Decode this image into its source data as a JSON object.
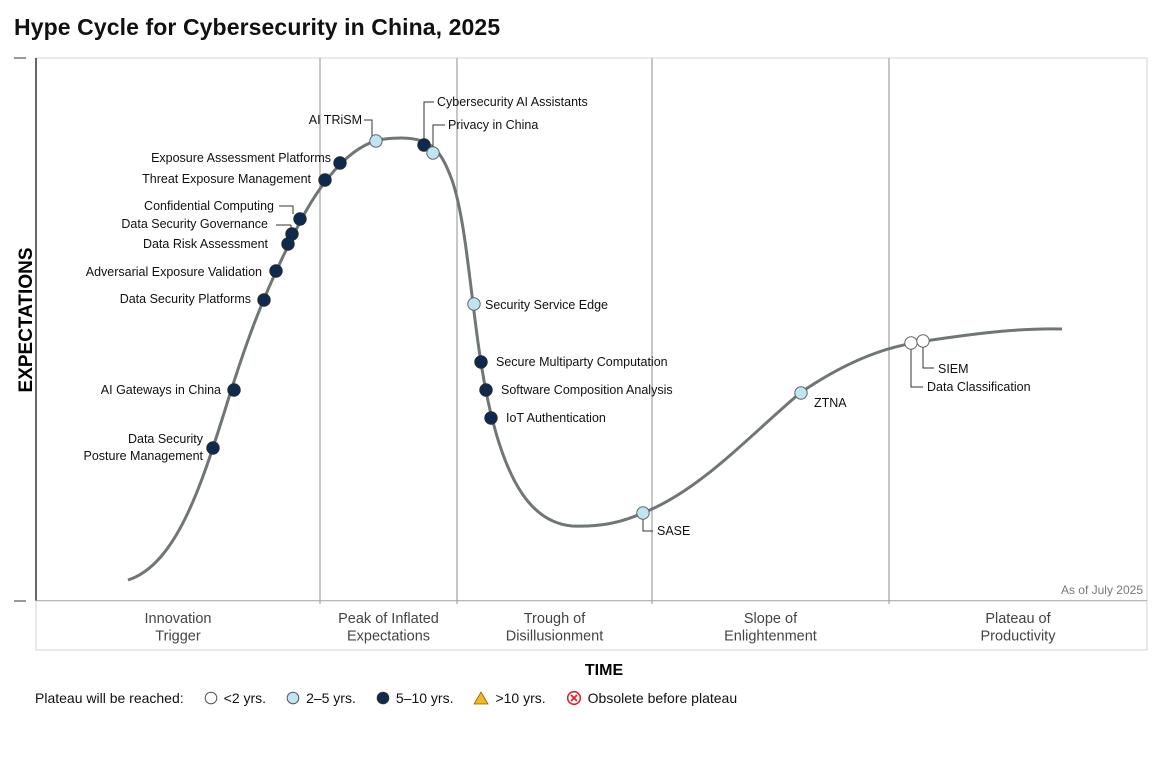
{
  "title": "Hype Cycle for Cybersecurity in China, 2025",
  "chart_data": {
    "type": "hype-cycle",
    "title": "Hype Cycle for Cybersecurity in China, 2025",
    "xlabel": "TIME",
    "ylabel": "EXPECTATIONS",
    "note": "As of July 2025",
    "phases": [
      [
        "Innovation",
        "Trigger"
      ],
      [
        "Peak of Inflated",
        "Expectations"
      ],
      [
        "Trough of",
        "Disillusionment"
      ],
      [
        "Slope of",
        "Enlightenment"
      ],
      [
        "Plateau of",
        "Productivity"
      ]
    ],
    "categories": {
      "lt2": {
        "label": "<2 yrs.",
        "color": "#ffffff"
      },
      "2to5": {
        "label": "2–5 yrs.",
        "color": "#bfe4f2"
      },
      "5to10": {
        "label": "5–10 yrs.",
        "color": "#0d2a4f"
      },
      "gt10": {
        "label": ">10 yrs.",
        "color": "#f2b722"
      },
      "obsolete": {
        "label": "Obsolete before plateau",
        "color": "#e0242b"
      }
    },
    "technologies": [
      {
        "name": "Data Security Posture Management",
        "lines": [
          "Data Security",
          "Posture Management"
        ],
        "phase": "Innovation Trigger",
        "plateau": "5to10"
      },
      {
        "name": "AI Gateways in China",
        "lines": [
          "AI Gateways in China"
        ],
        "phase": "Innovation Trigger",
        "plateau": "5to10"
      },
      {
        "name": "Data Security Platforms",
        "lines": [
          "Data Security Platforms"
        ],
        "phase": "Innovation Trigger",
        "plateau": "5to10"
      },
      {
        "name": "Adversarial Exposure Validation",
        "lines": [
          "Adversarial Exposure Validation"
        ],
        "phase": "Innovation Trigger",
        "plateau": "5to10"
      },
      {
        "name": "Data Risk Assessment",
        "lines": [
          "Data Risk Assessment"
        ],
        "phase": "Innovation Trigger",
        "plateau": "5to10"
      },
      {
        "name": "Data Security Governance",
        "lines": [
          "Data Security Governance"
        ],
        "phase": "Innovation Trigger",
        "plateau": "5to10"
      },
      {
        "name": "Confidential Computing",
        "lines": [
          "Confidential Computing"
        ],
        "phase": "Innovation Trigger",
        "plateau": "5to10"
      },
      {
        "name": "Threat Exposure Management",
        "lines": [
          "Threat Exposure Management"
        ],
        "phase": "Peak of Inflated Expectations",
        "plateau": "5to10"
      },
      {
        "name": "Exposure Assessment Platforms",
        "lines": [
          "Exposure Assessment Platforms"
        ],
        "phase": "Peak of Inflated Expectations",
        "plateau": "5to10"
      },
      {
        "name": "AI TRiSM",
        "lines": [
          "AI TRiSM"
        ],
        "phase": "Peak of Inflated Expectations",
        "plateau": "2to5"
      },
      {
        "name": "Cybersecurity AI Assistants",
        "lines": [
          "Cybersecurity AI Assistants"
        ],
        "phase": "Peak of Inflated Expectations",
        "plateau": "5to10"
      },
      {
        "name": "Privacy in China",
        "lines": [
          "Privacy in China"
        ],
        "phase": "Peak of Inflated Expectations",
        "plateau": "2to5"
      },
      {
        "name": "Security Service Edge",
        "lines": [
          "Security Service Edge"
        ],
        "phase": "Trough of Disillusionment",
        "plateau": "2to5"
      },
      {
        "name": "Secure Multiparty Computation",
        "lines": [
          "Secure Multiparty Computation"
        ],
        "phase": "Trough of Disillusionment",
        "plateau": "5to10"
      },
      {
        "name": "Software Composition Analysis",
        "lines": [
          "Software Composition Analysis"
        ],
        "phase": "Trough of Disillusionment",
        "plateau": "5to10"
      },
      {
        "name": "IoT Authentication",
        "lines": [
          "IoT Authentication"
        ],
        "phase": "Trough of Disillusionment",
        "plateau": "5to10"
      },
      {
        "name": "SASE",
        "lines": [
          "SASE"
        ],
        "phase": "Trough of Disillusionment",
        "plateau": "2to5"
      },
      {
        "name": "ZTNA",
        "lines": [
          "ZTNA"
        ],
        "phase": "Slope of Enlightenment",
        "plateau": "2to5"
      },
      {
        "name": "Data Classification",
        "lines": [
          "Data Classification"
        ],
        "phase": "Plateau of Productivity",
        "plateau": "lt2"
      },
      {
        "name": "SIEM",
        "lines": [
          "SIEM"
        ],
        "phase": "Plateau of Productivity",
        "plateau": "lt2"
      }
    ]
  },
  "legend": {
    "lead": "Plateau will be reached:",
    "items": [
      {
        "key": "lt2",
        "label": "<2 yrs.",
        "icon": "hollow-circle"
      },
      {
        "key": "2to5",
        "label": "2–5 yrs.",
        "icon": "light-blue-circle"
      },
      {
        "key": "5to10",
        "label": "5–10 yrs.",
        "icon": "navy-circle"
      },
      {
        "key": "gt10",
        "label": ">10 yrs.",
        "icon": "yellow-triangle"
      },
      {
        "key": "obsolete",
        "label": "Obsolete before plateau",
        "icon": "red-x-circle"
      }
    ]
  }
}
